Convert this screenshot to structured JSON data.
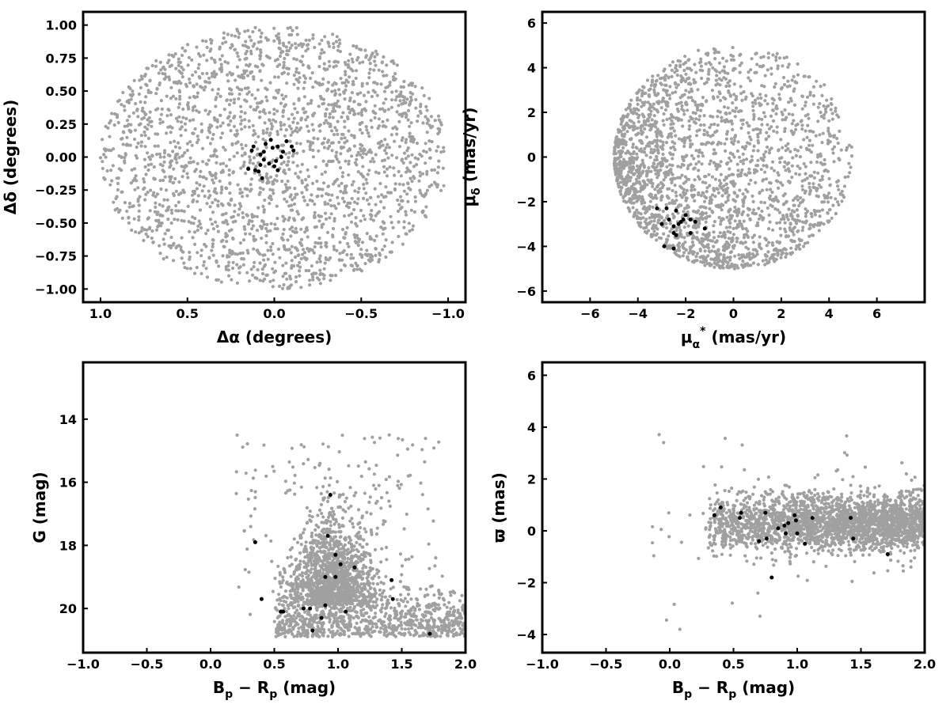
{
  "colors": {
    "field_stars": "#a0a0a0",
    "members": "#000000",
    "axes": "#000000"
  },
  "chart_data": [
    {
      "id": "sky",
      "type": "scatter",
      "xlabel": "Δα (degrees)",
      "ylabel": "Δδ (degrees)",
      "xlim": [
        1.1,
        -1.1
      ],
      "ylim": [
        -1.1,
        1.1
      ],
      "x_inverted": true,
      "xticks": [
        1.0,
        0.5,
        0.0,
        -0.5,
        -1.0
      ],
      "xtick_labels": [
        "1.0",
        "0.5",
        "0.0",
        "−0.5",
        "−1.0"
      ],
      "yticks": [
        1.0,
        0.75,
        0.5,
        0.25,
        0.0,
        -0.25,
        -0.5,
        -0.75,
        -1.0
      ],
      "ytick_labels": [
        "1.00",
        "0.75",
        "0.50",
        "0.25",
        "0.00",
        "−0.25",
        "−0.50",
        "−0.75",
        "−1.00"
      ],
      "grid": false,
      "field": {
        "n": 2300,
        "distribution": "uniform disk",
        "center": [
          0,
          0
        ],
        "radius": 1.0
      },
      "members": [
        [
          0.05,
          0.1
        ],
        [
          0.02,
          0.13
        ],
        [
          0.01,
          0.07
        ],
        [
          -0.02,
          0.08
        ],
        [
          -0.05,
          0.04
        ],
        [
          -0.07,
          0.12
        ],
        [
          -0.1,
          0.08
        ],
        [
          -0.11,
          0.05
        ],
        [
          0.06,
          0.04
        ],
        [
          0.08,
          0.02
        ],
        [
          0.12,
          0.08
        ],
        [
          0.13,
          0.05
        ],
        [
          0.06,
          -0.02
        ],
        [
          0.03,
          -0.05
        ],
        [
          0.0,
          -0.07
        ],
        [
          -0.01,
          -0.03
        ],
        [
          -0.04,
          0.0
        ],
        [
          -0.02,
          -0.1
        ],
        [
          0.08,
          -0.06
        ],
        [
          0.09,
          -0.11
        ],
        [
          0.11,
          -0.1
        ],
        [
          0.15,
          -0.09
        ],
        [
          0.07,
          -0.16
        ]
      ]
    },
    {
      "id": "proper-motion",
      "type": "scatter",
      "xlabel_main": "μ",
      "xlabel_sub": "α",
      "xlabel_sup": "*",
      "xlabel_rest": " (mas/yr)",
      "ylabel_main": "μ",
      "ylabel_sub": "δ",
      "ylabel_rest": " (mas/yr)",
      "xlim": [
        -8,
        8
      ],
      "ylim": [
        -6.5,
        6.5
      ],
      "xticks": [
        -6,
        -4,
        -2,
        0,
        2,
        4,
        6
      ],
      "xtick_labels": [
        "−6",
        "−4",
        "−2",
        "0",
        "2",
        "4",
        "6"
      ],
      "yticks": [
        6,
        4,
        2,
        0,
        -2,
        -4,
        -6
      ],
      "ytick_labels": [
        "6",
        "4",
        "2",
        "0",
        "−2",
        "−4",
        "−6"
      ],
      "grid": false,
      "field": {
        "n": 2300,
        "distribution": "disk, dense toward lower-left",
        "center": [
          0,
          0
        ],
        "radius": 5.0
      },
      "members": [
        [
          -3.2,
          -2.3
        ],
        [
          -2.8,
          -2.3
        ],
        [
          -2.4,
          -2.4
        ],
        [
          -2.0,
          -2.6
        ],
        [
          -1.8,
          -2.8
        ],
        [
          -2.2,
          -2.9
        ],
        [
          -2.7,
          -2.8
        ],
        [
          -3.0,
          -3.0
        ],
        [
          -2.5,
          -3.1
        ],
        [
          -2.5,
          -3.4
        ],
        [
          -2.4,
          -3.5
        ],
        [
          -1.8,
          -3.4
        ],
        [
          -1.2,
          -3.2
        ],
        [
          -2.9,
          -4.0
        ],
        [
          -2.5,
          -4.1
        ],
        [
          -2.3,
          -3.0
        ],
        [
          -1.6,
          -2.9
        ],
        [
          -2.1,
          -2.8
        ]
      ]
    },
    {
      "id": "cmd",
      "type": "scatter",
      "xlabel_main": "B",
      "xlabel_sub1": "p",
      "xlabel_mid": " − R",
      "xlabel_sub2": "p",
      "xlabel_rest": " (mag)",
      "ylabel": "G (mag)",
      "xlim": [
        -1.0,
        2.0
      ],
      "ylim": [
        21.4,
        12.2
      ],
      "y_inverted": true,
      "xticks": [
        -1.0,
        -0.5,
        0.0,
        0.5,
        1.0,
        1.5,
        2.0
      ],
      "xtick_labels": [
        "−1.0",
        "−0.5",
        "0.0",
        "0.5",
        "1.0",
        "1.5",
        "2.0"
      ],
      "yticks": [
        20,
        18,
        16,
        14
      ],
      "ytick_labels": [
        "20",
        "18",
        "16",
        "14"
      ],
      "grid": false,
      "field": {
        "n": 2400,
        "distribution": "dense cloud at BP−RP 0.5–2.0, G 17–21"
      },
      "members": [
        [
          0.4,
          19.7
        ],
        [
          0.55,
          20.1
        ],
        [
          0.57,
          20.1
        ],
        [
          0.73,
          20.0
        ],
        [
          0.78,
          20.0
        ],
        [
          0.8,
          20.7
        ],
        [
          0.87,
          20.3
        ],
        [
          0.9,
          19.9
        ],
        [
          0.9,
          19.0
        ],
        [
          0.98,
          19.0
        ],
        [
          0.98,
          18.3
        ],
        [
          1.02,
          18.6
        ],
        [
          1.06,
          20.1
        ],
        [
          1.13,
          18.7
        ],
        [
          1.42,
          19.1
        ],
        [
          1.43,
          19.7
        ],
        [
          1.72,
          20.8
        ],
        [
          0.92,
          17.7
        ],
        [
          0.35,
          17.9
        ],
        [
          0.94,
          16.4
        ]
      ]
    },
    {
      "id": "parallax",
      "type": "scatter",
      "xlabel_main": "B",
      "xlabel_sub1": "p",
      "xlabel_mid": " − R",
      "xlabel_sub2": "p",
      "xlabel_rest": " (mag)",
      "ylabel": "ϖ (mas)",
      "xlim": [
        -1.0,
        2.0
      ],
      "ylim": [
        -4.7,
        6.5
      ],
      "xticks": [
        -1.0,
        -0.5,
        0.0,
        0.5,
        1.0,
        1.5,
        2.0
      ],
      "xtick_labels": [
        "−1.0",
        "−0.5",
        "0.0",
        "0.5",
        "1.0",
        "1.5",
        "2.0"
      ],
      "yticks": [
        6,
        4,
        2,
        0,
        -2,
        -4
      ],
      "ytick_labels": [
        "6",
        "4",
        "2",
        "0",
        "−2",
        "−4"
      ],
      "grid": false,
      "field": {
        "n": 2400,
        "distribution": "band around ϖ≈0.3 from BP−RP 0.3 to 2.0"
      },
      "members": [
        [
          0.35,
          0.6
        ],
        [
          0.4,
          0.9
        ],
        [
          0.55,
          0.5
        ],
        [
          0.56,
          0.7
        ],
        [
          0.7,
          -0.4
        ],
        [
          0.75,
          0.7
        ],
        [
          0.76,
          -0.3
        ],
        [
          0.8,
          -1.8
        ],
        [
          0.85,
          0.1
        ],
        [
          0.9,
          0.2
        ],
        [
          0.91,
          -0.1
        ],
        [
          0.93,
          0.3
        ],
        [
          0.98,
          0.6
        ],
        [
          0.99,
          0.4
        ],
        [
          1.0,
          -0.1
        ],
        [
          1.06,
          -0.5
        ],
        [
          1.12,
          0.5
        ],
        [
          1.42,
          0.5
        ],
        [
          1.44,
          -0.3
        ],
        [
          1.71,
          -0.9
        ]
      ]
    }
  ]
}
